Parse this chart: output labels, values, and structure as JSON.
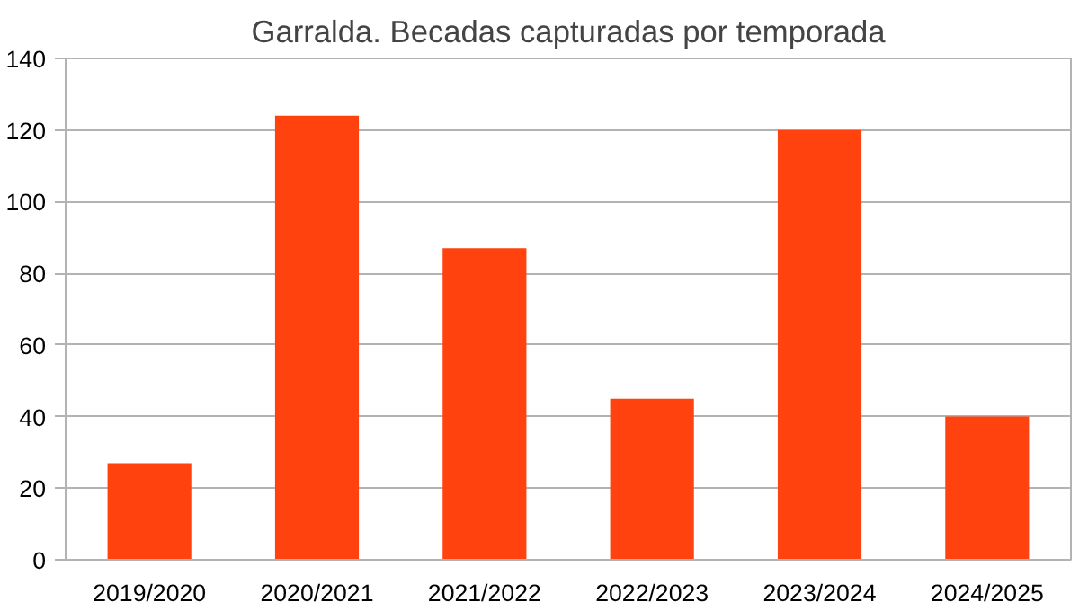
{
  "chart_data": {
    "type": "bar",
    "title": "Garralda. Becadas capturadas por temporada",
    "categories": [
      "2019/2020",
      "2020/2021",
      "2021/2022",
      "2022/2023",
      "2023/2024",
      "2024/2025"
    ],
    "series": [
      {
        "color": "#ff420e",
        "values": [
          27,
          124,
          87,
          45,
          120,
          40
        ]
      }
    ],
    "ylim": [
      0,
      140
    ],
    "yticks": [
      0,
      20,
      40,
      60,
      80,
      100,
      120,
      140
    ],
    "grid": "y"
  }
}
